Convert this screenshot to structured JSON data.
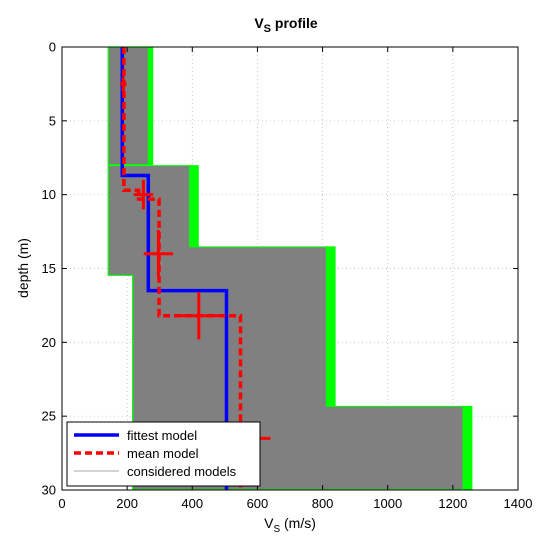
{
  "chart_data": {
    "type": "line",
    "title": {
      "main": "V",
      "sub": "S",
      "rest": " profile"
    },
    "xlabel": {
      "main": "V",
      "sub": "S",
      "rest": " (m/s)"
    },
    "ylabel": "depth (m)",
    "xlim": [
      0,
      1400
    ],
    "ylim": [
      0,
      30
    ],
    "y_reversed": true,
    "grid": true,
    "xticks": [
      0,
      200,
      400,
      600,
      800,
      1000,
      1200,
      1400
    ],
    "yticks": [
      0,
      5,
      10,
      15,
      20,
      25,
      30
    ],
    "legend": {
      "placement": "bottom-left",
      "entries": [
        {
          "label": "fittest model",
          "color": "#0000ff",
          "style": "solid"
        },
        {
          "label": "mean model",
          "color": "#ff0000",
          "style": "dashed"
        },
        {
          "label": "considered models",
          "color": "#999999",
          "style": "thin"
        }
      ]
    },
    "colors": {
      "considered": "#808080",
      "misfit_fringe": "#00ff00",
      "fittest": "#0000ff",
      "mean": "#ff0000"
    },
    "considered_envelope": [
      {
        "depth_top": 0,
        "depth_bottom": 8,
        "vs_min": 140,
        "vs_max": 280
      },
      {
        "depth_top": 8,
        "depth_bottom": 15.5,
        "vs_min": 140,
        "vs_max": 420
      },
      {
        "depth_top": 13.5,
        "depth_bottom": 24.5,
        "vs_min": 215,
        "vs_max": 840
      },
      {
        "depth_top": 24.3,
        "depth_bottom": 30,
        "vs_min": 215,
        "vs_max": 1260
      }
    ],
    "series": [
      {
        "name": "fittest model",
        "points": [
          [
            185,
            0
          ],
          [
            185,
            8.7
          ],
          [
            265,
            8.7
          ],
          [
            265,
            16.5
          ],
          [
            505,
            16.5
          ],
          [
            505,
            30
          ]
        ]
      },
      {
        "name": "mean model",
        "points": [
          [
            190,
            0
          ],
          [
            190,
            9.7
          ],
          [
            235,
            9.7
          ],
          [
            235,
            10.3
          ],
          [
            298,
            10.3
          ],
          [
            298,
            18.2
          ],
          [
            548,
            18.2
          ],
          [
            548,
            30
          ]
        ],
        "error_bars": [
          {
            "depth": 2.5,
            "vs": 188,
            "dx": 10,
            "dy": 0.5
          },
          {
            "depth": 10.0,
            "vs": 250,
            "dx": 30,
            "dy": 1.0
          },
          {
            "depth": 14.0,
            "vs": 296,
            "dx": 45,
            "dy": 1.6
          },
          {
            "depth": 18.2,
            "vs": 420,
            "dx": 60,
            "dy": 1.6
          },
          {
            "depth": 26.5,
            "vs": 560,
            "dx": 80,
            "dy": 0.8
          }
        ]
      }
    ]
  }
}
